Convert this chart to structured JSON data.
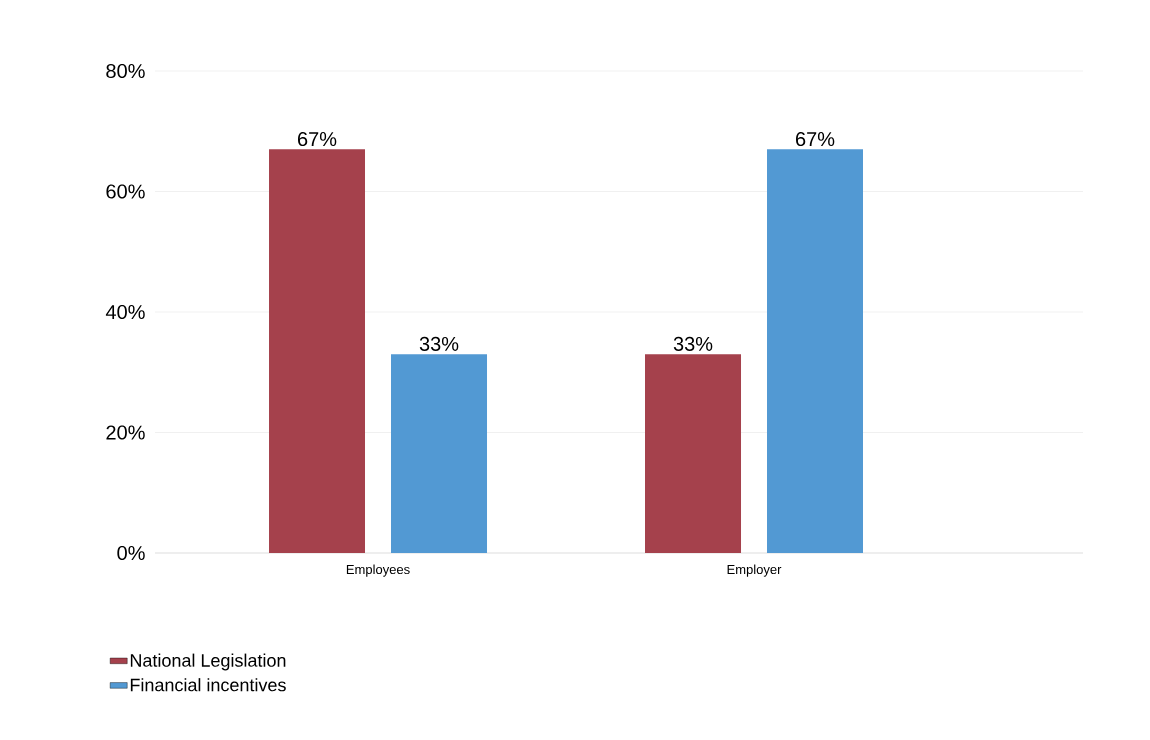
{
  "chart_data": {
    "type": "bar",
    "categories": [
      "Employees",
      "Employer"
    ],
    "series": [
      {
        "name": "National Legislation",
        "color": "#a5414c",
        "values": [
          67,
          33
        ],
        "value_labels": [
          "67%",
          "33%"
        ]
      },
      {
        "name": "Financial incentives",
        "color": "#5299d3",
        "values": [
          33,
          67
        ],
        "value_labels": [
          "33%",
          "67%"
        ]
      }
    ],
    "ylim": [
      0,
      80
    ],
    "yticks": [
      {
        "value": 0,
        "label": "0%"
      },
      {
        "value": 20,
        "label": "20%"
      },
      {
        "value": 40,
        "label": "40%"
      },
      {
        "value": 60,
        "label": "60%"
      },
      {
        "value": 80,
        "label": "80%"
      }
    ],
    "grid": "y",
    "legend": "bottom left"
  }
}
